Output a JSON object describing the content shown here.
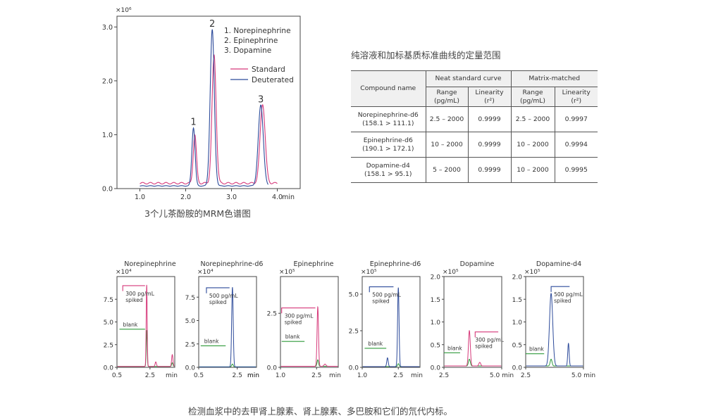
{
  "main_chart": {
    "exponent_label": "×10⁶",
    "x_unit": "min",
    "caption": "3个儿茶酚胺的MRM色谱图",
    "peak_labels": [
      "1",
      "2",
      "3"
    ],
    "legend_compounds": [
      "1. Norepinephrine",
      "2. Epinephrine",
      "3. Dopamine"
    ],
    "legend_series": [
      "Standard",
      "Deuterated"
    ],
    "colors": {
      "standard": "#d6397a",
      "deuterated": "#2c4a9a"
    }
  },
  "table": {
    "title": "纯溶液和加标基质标准曲线的定量范围",
    "col_compound": "Compound name",
    "group_neat": "Neat standard curve",
    "group_matrix": "Matrix-matched",
    "col_range_1": "Range",
    "col_range_2": "(pg/mL)",
    "col_lin_1": "Linearity",
    "col_lin_2": "(r²)",
    "rows": [
      {
        "name": "Norepinephrine-d6",
        "mz": "(158.1 > 111.1)",
        "neat_range": "2.5 – 2000",
        "neat_lin": "0.9999",
        "mm_range": "2.5 – 2000",
        "mm_lin": "0.9997"
      },
      {
        "name": "Epinephrine-d6",
        "mz": "(190.1 > 172.1)",
        "neat_range": "10 – 2000",
        "neat_lin": "0.9999",
        "mm_range": "10 – 2000",
        "mm_lin": "0.9994"
      },
      {
        "name": "Dopamine-d4",
        "mz": "(158.1 > 95.1)",
        "neat_range": "5 – 2000",
        "neat_lin": "0.9999",
        "mm_range": "10 – 2000",
        "mm_lin": "0.9995"
      }
    ]
  },
  "bottom_caption": "检测血浆中的去甲肾上腺素、肾上腺素、多巴胺和它们的氘代内标。",
  "chart_data": [
    {
      "type": "line",
      "x_range": [
        0.5,
        4.5
      ],
      "y_range": [
        0,
        3.2
      ],
      "x_ticks": [
        "1.0",
        "2.0",
        "3.0",
        "4.0"
      ],
      "y_ticks": [
        "0.0",
        "1.0",
        "2.0",
        "3.0"
      ],
      "series": [
        {
          "name": "Standard",
          "baseline": 0.1,
          "x_start": 1.0,
          "x_end": 4.0,
          "peaks": [
            {
              "x": 2.2,
              "h": 0.9,
              "w": 0.035
            },
            {
              "x": 2.62,
              "h": 2.38,
              "w": 0.045
            },
            {
              "x": 3.68,
              "h": 1.47,
              "w": 0.055
            }
          ]
        },
        {
          "name": "Deuterated",
          "baseline": 0.05,
          "x_start": 1.0,
          "x_end": 3.8,
          "peaks": [
            {
              "x": 2.17,
              "h": 1.08,
              "w": 0.035
            },
            {
              "x": 2.58,
              "h": 2.9,
              "w": 0.045
            },
            {
              "x": 3.64,
              "h": 1.5,
              "w": 0.055
            }
          ]
        }
      ]
    },
    {
      "type": "line",
      "title": "Norepinephrine",
      "exponent_label": "×10⁴",
      "x_range": [
        0.5,
        4.0
      ],
      "y_range": [
        0,
        10
      ],
      "x_ticks": [
        "0.5",
        "2.5"
      ],
      "x_tick_values": [
        0.5,
        2.5
      ],
      "y_ticks": [
        "0.0",
        "2.5",
        "5.0",
        "7.5"
      ],
      "y_tick_values": [
        0,
        2.5,
        5.0,
        7.5
      ],
      "x_unit": "min",
      "color": "#d6397a",
      "spiked_label": "300 pg/mL spiked",
      "blank_label": "blank",
      "baseline": 0.1,
      "spiked_peaks": [
        {
          "x": 2.3,
          "h": 9.0,
          "w": 0.03
        },
        {
          "x": 2.85,
          "h": 0.5,
          "w": 0.04
        },
        {
          "x": 3.85,
          "h": 1.3,
          "w": 0.04
        }
      ],
      "blank_peaks": [
        {
          "x": 2.3,
          "h": 4.0,
          "w": 0.03
        },
        {
          "x": 3.85,
          "h": 0.4,
          "w": 0.04
        }
      ],
      "spiked_marker": {
        "x1": 0.85,
        "x2": 2.2,
        "y": 9.0
      },
      "blank_marker": {
        "x1": 0.65,
        "x2": 2.2,
        "y": 4.2
      }
    },
    {
      "type": "line",
      "title": "Norepinephrine-d6",
      "exponent_label": "×10⁴",
      "x_range": [
        0.5,
        3.5
      ],
      "y_range": [
        0,
        9.7
      ],
      "x_ticks": [
        "0.5",
        "2.5",
        "min"
      ],
      "x_tick_values": [
        0.5,
        2.5
      ],
      "y_ticks": [
        "0.0",
        "2.5",
        "5.0",
        "7.5"
      ],
      "y_tick_values": [
        0,
        2.5,
        5.0,
        7.5
      ],
      "x_unit": "min",
      "color": "#2c4a9a",
      "spiked_label": "500 pg/mL spiked",
      "blank_label": "blank",
      "baseline": 0.05,
      "spiked_peaks": [
        {
          "x": 2.25,
          "h": 8.5,
          "w": 0.04
        }
      ],
      "blank_peaks": [
        {
          "x": 2.25,
          "h": 0.3,
          "w": 0.04
        }
      ],
      "spiked_marker": {
        "x1": 0.9,
        "x2": 2.1,
        "y": 8.5
      },
      "blank_marker": {
        "x1": 0.6,
        "x2": 1.9,
        "y": 2.3
      }
    },
    {
      "type": "line",
      "title": "Epinephrine",
      "exponent_label": "×10⁵",
      "x_range": [
        1.0,
        3.4
      ],
      "y_range": [
        0,
        4.2
      ],
      "x_ticks": [
        "1.0",
        "2.5"
      ],
      "x_tick_values": [
        1.0,
        2.5
      ],
      "y_ticks": [
        "0.0",
        "2.5"
      ],
      "y_tick_values": [
        0,
        2.5
      ],
      "x_unit": "min",
      "color": "#d6397a",
      "spiked_label": "300 pg/mL spiked",
      "blank_label": "blank",
      "baseline": 0.05,
      "spiked_peaks": [
        {
          "x": 2.55,
          "h": 2.75,
          "w": 0.03
        },
        {
          "x": 2.85,
          "h": 0.1,
          "w": 0.04
        }
      ],
      "blank_peaks": [
        {
          "x": 2.55,
          "h": 0.3,
          "w": 0.03
        }
      ],
      "spiked_marker": {
        "x1": 1.05,
        "x2": 2.45,
        "y": 2.75
      },
      "blank_marker": {
        "x1": 1.05,
        "x2": 2.0,
        "y": 1.2
      }
    },
    {
      "type": "line",
      "title": "Epinephrine-d6",
      "exponent_label": "×10⁵",
      "x_range": [
        1.0,
        3.4
      ],
      "y_range": [
        0,
        6.2
      ],
      "x_ticks": [
        "1.0",
        "2.5"
      ],
      "x_tick_values": [
        1.0,
        2.5
      ],
      "y_ticks": [
        "0.0",
        "2.5",
        "5.0"
      ],
      "y_tick_values": [
        0,
        2.5,
        5.0
      ],
      "x_unit": "min",
      "color": "#2c4a9a",
      "spiked_label": "500 pg/mL spiked",
      "blank_label": "blank",
      "baseline": 0.05,
      "spiked_peaks": [
        {
          "x": 2.5,
          "h": 5.4,
          "w": 0.03
        },
        {
          "x": 2.05,
          "h": 0.6,
          "w": 0.03
        }
      ],
      "blank_peaks": [
        {
          "x": 2.5,
          "h": 0.2,
          "w": 0.03
        }
      ],
      "spiked_marker": {
        "x1": 1.3,
        "x2": 2.3,
        "y": 5.5
      },
      "blank_marker": {
        "x1": 1.1,
        "x2": 2.0,
        "y": 1.3
      }
    },
    {
      "type": "line",
      "title": "Dopamine",
      "exponent_label": "×10⁵",
      "x_range": [
        2.5,
        5.0
      ],
      "y_range": [
        0,
        2.0
      ],
      "x_ticks": [
        "2.5",
        "5.0 min"
      ],
      "x_tick_values": [
        2.5,
        5.0
      ],
      "y_ticks": [
        "0.0",
        "0.5",
        "1.0",
        "1.5",
        "2.0"
      ],
      "y_tick_values": [
        0,
        0.5,
        1.0,
        1.5,
        2.0
      ],
      "x_unit": "",
      "color": "#d6397a",
      "spiked_label": "300 pg/mL spiked",
      "blank_label": "blank",
      "baseline": 0.03,
      "spiked_peaks": [
        {
          "x": 3.6,
          "h": 0.78,
          "w": 0.04
        },
        {
          "x": 4.05,
          "h": 0.08,
          "w": 0.04
        }
      ],
      "blank_peaks": [
        {
          "x": 3.6,
          "h": 0.15,
          "w": 0.04
        }
      ],
      "spiked_marker": {
        "x1": 3.85,
        "x2": 4.85,
        "y": 0.78
      },
      "blank_marker": {
        "x1": 2.5,
        "x2": 3.2,
        "y": 0.32
      }
    },
    {
      "type": "line",
      "title": "Dopamine-d4",
      "exponent_label": "×10⁵",
      "x_range": [
        2.5,
        5.0
      ],
      "y_range": [
        0,
        2.0
      ],
      "x_ticks": [
        "2.5",
        "5.0 min"
      ],
      "x_tick_values": [
        2.5,
        5.0
      ],
      "y_ticks": [
        "0.0",
        "0.5",
        "1.0",
        "1.5",
        "2.0"
      ],
      "y_tick_values": [
        0,
        0.5,
        1.0,
        1.5,
        2.0
      ],
      "x_unit": "",
      "color": "#2c4a9a",
      "spiked_label": "500 pg/mL spiked",
      "blank_label": "blank",
      "baseline": 0.03,
      "spiked_peaks": [
        {
          "x": 3.6,
          "h": 1.6,
          "w": 0.07
        },
        {
          "x": 4.35,
          "h": 0.5,
          "w": 0.03
        }
      ],
      "blank_peaks": [
        {
          "x": 3.6,
          "h": 0.15,
          "w": 0.04
        }
      ],
      "spiked_marker": {
        "x1": 3.6,
        "x2": 4.4,
        "y": 1.78
      },
      "blank_marker": {
        "x1": 2.5,
        "x2": 3.3,
        "y": 0.3
      }
    }
  ]
}
